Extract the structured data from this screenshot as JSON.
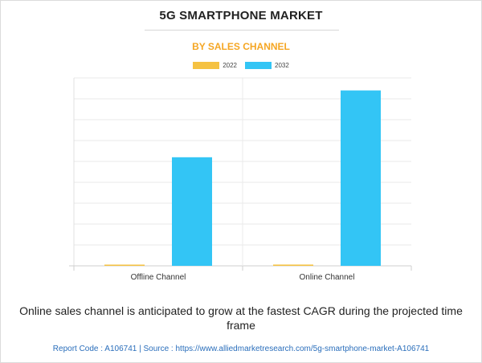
{
  "title": "5G SMARTPHONE MARKET",
  "subtitle": "BY SALES CHANNEL",
  "colors": {
    "2022": "#f5c242",
    "2032": "#33c5f5",
    "subtitle": "#f5a623",
    "link": "#2a6ebb"
  },
  "chart_data": {
    "type": "bar",
    "categories": [
      "Offline Channel",
      "Online Channel"
    ],
    "series": [
      {
        "name": "2022",
        "values": [
          0.2,
          0.3
        ]
      },
      {
        "name": "2032",
        "values": [
          26,
          42
        ]
      }
    ],
    "ylim": [
      0,
      45
    ],
    "grid": true,
    "legend": "top-center"
  },
  "caption": "Online sales channel is anticipated to grow at the fastest CAGR during the projected time frame",
  "source": "Report Code : A106741  |  Source : https://www.alliedmarketresearch.com/5g-smartphone-market-A106741"
}
